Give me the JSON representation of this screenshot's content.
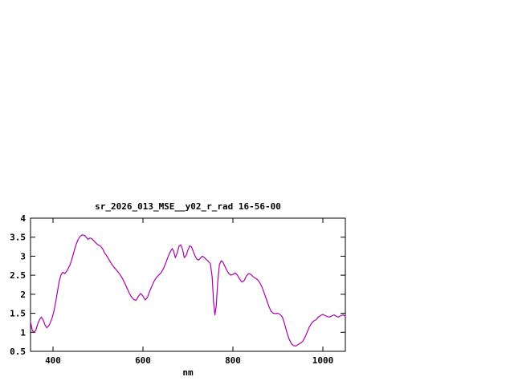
{
  "page": {
    "background_color": "#ffffff"
  },
  "chart_data": {
    "type": "line",
    "title": "sr_2026_013_MSE__y02_r_rad 16-56-00",
    "xlabel": "nm",
    "ylabel": "",
    "xlim": [
      350,
      1050
    ],
    "ylim": [
      0.5,
      4
    ],
    "xticks": [
      400,
      600,
      800,
      1000
    ],
    "yticks": [
      0.5,
      1,
      1.5,
      2,
      2.5,
      3,
      3.5,
      4
    ],
    "grid": false,
    "legend": "none",
    "axis_color": "#000000",
    "series": [
      {
        "name": "sr_2026_013_MSE__y02_r_rad",
        "color": "#aa00aa",
        "points": [
          [
            350,
            1.28
          ],
          [
            354,
            1.05
          ],
          [
            358,
            1.0
          ],
          [
            362,
            1.06
          ],
          [
            366,
            1.22
          ],
          [
            370,
            1.33
          ],
          [
            374,
            1.4
          ],
          [
            378,
            1.33
          ],
          [
            382,
            1.2
          ],
          [
            386,
            1.12
          ],
          [
            390,
            1.16
          ],
          [
            394,
            1.25
          ],
          [
            398,
            1.38
          ],
          [
            402,
            1.55
          ],
          [
            406,
            1.8
          ],
          [
            410,
            2.08
          ],
          [
            414,
            2.35
          ],
          [
            418,
            2.52
          ],
          [
            422,
            2.58
          ],
          [
            426,
            2.54
          ],
          [
            430,
            2.6
          ],
          [
            434,
            2.68
          ],
          [
            438,
            2.78
          ],
          [
            442,
            2.92
          ],
          [
            446,
            3.1
          ],
          [
            450,
            3.26
          ],
          [
            455,
            3.42
          ],
          [
            460,
            3.52
          ],
          [
            465,
            3.56
          ],
          [
            470,
            3.55
          ],
          [
            474,
            3.5
          ],
          [
            478,
            3.44
          ],
          [
            482,
            3.48
          ],
          [
            486,
            3.46
          ],
          [
            490,
            3.42
          ],
          [
            495,
            3.35
          ],
          [
            500,
            3.3
          ],
          [
            505,
            3.27
          ],
          [
            510,
            3.2
          ],
          [
            515,
            3.08
          ],
          [
            520,
            3.0
          ],
          [
            525,
            2.9
          ],
          [
            530,
            2.8
          ],
          [
            535,
            2.72
          ],
          [
            540,
            2.65
          ],
          [
            545,
            2.58
          ],
          [
            550,
            2.5
          ],
          [
            555,
            2.4
          ],
          [
            560,
            2.28
          ],
          [
            565,
            2.15
          ],
          [
            570,
            2.02
          ],
          [
            575,
            1.92
          ],
          [
            580,
            1.86
          ],
          [
            585,
            1.84
          ],
          [
            590,
            1.95
          ],
          [
            595,
            2.02
          ],
          [
            600,
            1.95
          ],
          [
            605,
            1.85
          ],
          [
            610,
            1.92
          ],
          [
            615,
            2.08
          ],
          [
            620,
            2.22
          ],
          [
            625,
            2.35
          ],
          [
            630,
            2.44
          ],
          [
            635,
            2.5
          ],
          [
            640,
            2.56
          ],
          [
            645,
            2.66
          ],
          [
            650,
            2.8
          ],
          [
            655,
            2.96
          ],
          [
            660,
            3.1
          ],
          [
            665,
            3.2
          ],
          [
            668,
            3.14
          ],
          [
            672,
            2.96
          ],
          [
            676,
            3.08
          ],
          [
            680,
            3.26
          ],
          [
            684,
            3.3
          ],
          [
            688,
            3.18
          ],
          [
            692,
            2.96
          ],
          [
            696,
            3.02
          ],
          [
            700,
            3.16
          ],
          [
            704,
            3.27
          ],
          [
            708,
            3.24
          ],
          [
            712,
            3.12
          ],
          [
            716,
            3.0
          ],
          [
            720,
            2.92
          ],
          [
            724,
            2.9
          ],
          [
            728,
            2.95
          ],
          [
            732,
            3.0
          ],
          [
            736,
            2.97
          ],
          [
            740,
            2.92
          ],
          [
            745,
            2.87
          ],
          [
            750,
            2.8
          ],
          [
            754,
            2.45
          ],
          [
            757,
            1.8
          ],
          [
            760,
            1.46
          ],
          [
            763,
            1.7
          ],
          [
            766,
            2.3
          ],
          [
            770,
            2.78
          ],
          [
            774,
            2.88
          ],
          [
            778,
            2.84
          ],
          [
            782,
            2.74
          ],
          [
            786,
            2.64
          ],
          [
            790,
            2.56
          ],
          [
            795,
            2.5
          ],
          [
            800,
            2.52
          ],
          [
            805,
            2.56
          ],
          [
            810,
            2.5
          ],
          [
            815,
            2.4
          ],
          [
            820,
            2.32
          ],
          [
            825,
            2.36
          ],
          [
            830,
            2.48
          ],
          [
            835,
            2.54
          ],
          [
            840,
            2.52
          ],
          [
            845,
            2.46
          ],
          [
            850,
            2.42
          ],
          [
            855,
            2.38
          ],
          [
            860,
            2.3
          ],
          [
            865,
            2.18
          ],
          [
            870,
            2.02
          ],
          [
            875,
            1.85
          ],
          [
            880,
            1.68
          ],
          [
            885,
            1.55
          ],
          [
            890,
            1.5
          ],
          [
            895,
            1.49
          ],
          [
            900,
            1.5
          ],
          [
            905,
            1.47
          ],
          [
            910,
            1.4
          ],
          [
            915,
            1.22
          ],
          [
            920,
            1.0
          ],
          [
            925,
            0.82
          ],
          [
            930,
            0.7
          ],
          [
            935,
            0.65
          ],
          [
            940,
            0.64
          ],
          [
            945,
            0.68
          ],
          [
            950,
            0.71
          ],
          [
            955,
            0.76
          ],
          [
            960,
            0.86
          ],
          [
            965,
            1.0
          ],
          [
            970,
            1.14
          ],
          [
            975,
            1.24
          ],
          [
            980,
            1.3
          ],
          [
            985,
            1.33
          ],
          [
            990,
            1.4
          ],
          [
            995,
            1.44
          ],
          [
            1000,
            1.47
          ],
          [
            1005,
            1.44
          ],
          [
            1010,
            1.41
          ],
          [
            1015,
            1.4
          ],
          [
            1020,
            1.43
          ],
          [
            1025,
            1.46
          ],
          [
            1030,
            1.42
          ],
          [
            1035,
            1.4
          ],
          [
            1040,
            1.44
          ],
          [
            1045,
            1.46
          ],
          [
            1050,
            1.42
          ]
        ]
      }
    ]
  }
}
